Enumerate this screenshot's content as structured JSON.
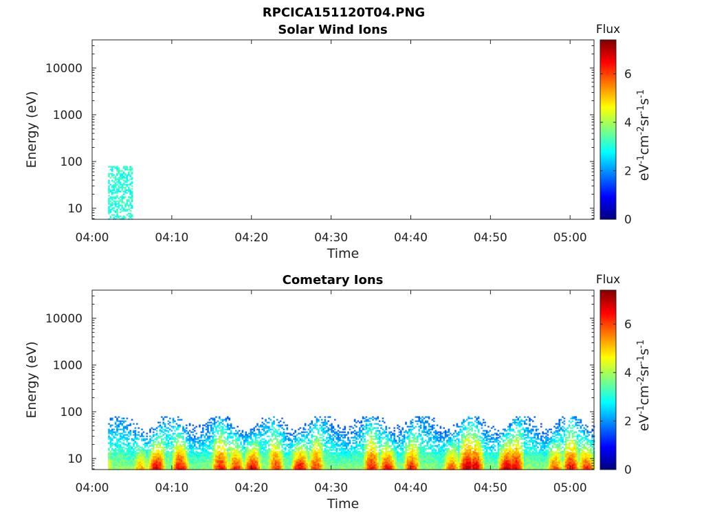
{
  "figure": {
    "title": "RPCICA151120T04.PNG"
  },
  "colorbar": {
    "title": "Flux",
    "unit_parts": [
      "eV",
      "-1",
      "cm",
      "-2",
      "sr",
      "-1",
      "s",
      "-1"
    ],
    "range": [
      0,
      7.4
    ],
    "ticks": [
      "0",
      "2",
      "4",
      "6"
    ],
    "colormap": "jet"
  },
  "chart_data": [
    {
      "type": "heatmap",
      "title": "Solar Wind Ions",
      "xlabel": "Time",
      "ylabel": "Energy (eV)",
      "yscale": "log",
      "ylim": [
        5.8,
        40000
      ],
      "xlim": [
        "04:00",
        "05:03"
      ],
      "x_ticks": [
        "04:00",
        "04:10",
        "04:20",
        "04:30",
        "04:40",
        "04:50",
        "05:00"
      ],
      "y_ticks": [
        "10",
        "100",
        "1000",
        "10000"
      ],
      "data_start": "04:02",
      "data_end": "04:05",
      "flux_profile_x": [
        "04:02",
        "04:05"
      ],
      "flux_profile_peak": [
        3.0,
        3.0
      ],
      "energy_max": 80
    },
    {
      "type": "heatmap",
      "title": "Cometary Ions",
      "xlabel": "Time",
      "ylabel": "Energy (eV)",
      "yscale": "log",
      "ylim": [
        5.8,
        40000
      ],
      "xlim": [
        "04:00",
        "05:03"
      ],
      "x_ticks": [
        "04:00",
        "04:10",
        "04:20",
        "04:30",
        "04:40",
        "04:50",
        "05:00"
      ],
      "y_ticks": [
        "10",
        "100",
        "1000",
        "10000"
      ],
      "data_start": "04:02",
      "data_end": "05:03",
      "flux_profile_x": [
        "04:02",
        "04:06",
        "04:08",
        "04:11",
        "04:16",
        "04:18",
        "04:20",
        "04:23",
        "04:26",
        "04:28",
        "04:35",
        "04:37",
        "04:40",
        "04:45",
        "04:47",
        "04:48",
        "04:52",
        "04:53",
        "04:58",
        "05:00",
        "05:02"
      ],
      "flux_profile_peak": [
        4.5,
        5.5,
        7.0,
        6.8,
        6.6,
        6.5,
        7.0,
        6.3,
        7.0,
        6.3,
        6.6,
        6.8,
        6.5,
        6.2,
        7.2,
        7.0,
        7.3,
        7.0,
        6.2,
        6.7,
        6.5
      ],
      "energy_max": 80
    }
  ]
}
